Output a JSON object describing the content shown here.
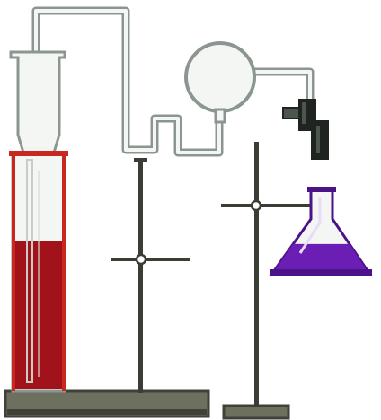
{
  "scene": {
    "name": "laboratory-distillation-apparatus",
    "components": [
      "graduated-cylinder",
      "ring-stand-left",
      "ring-stand-right",
      "glass-tubing",
      "round-bottom-bulb",
      "stopcock-valve",
      "erlenmeyer-flask"
    ]
  },
  "colors": {
    "background": "#ffffff",
    "glass_outline": "#8c9690",
    "glass_fill": "#f4f6f4",
    "red_liquid": "#a2121a",
    "red_rim": "#c8281e",
    "purple_liquid": "#6a1eb4",
    "purple_outline": "#4a1488",
    "stand_metal": "#3a3d34",
    "stand_base": "#6d705f",
    "stand_base_dark": "#3f4237",
    "valve_dark": "#1f2420",
    "valve_mid": "#4d554f"
  },
  "liquids": {
    "cylinder_fill_fraction": 0.63,
    "flask_fill_fraction": 0.55
  },
  "icons": {
    "clamp": "cross-clamp-icon",
    "valve": "stopcock-icon"
  }
}
